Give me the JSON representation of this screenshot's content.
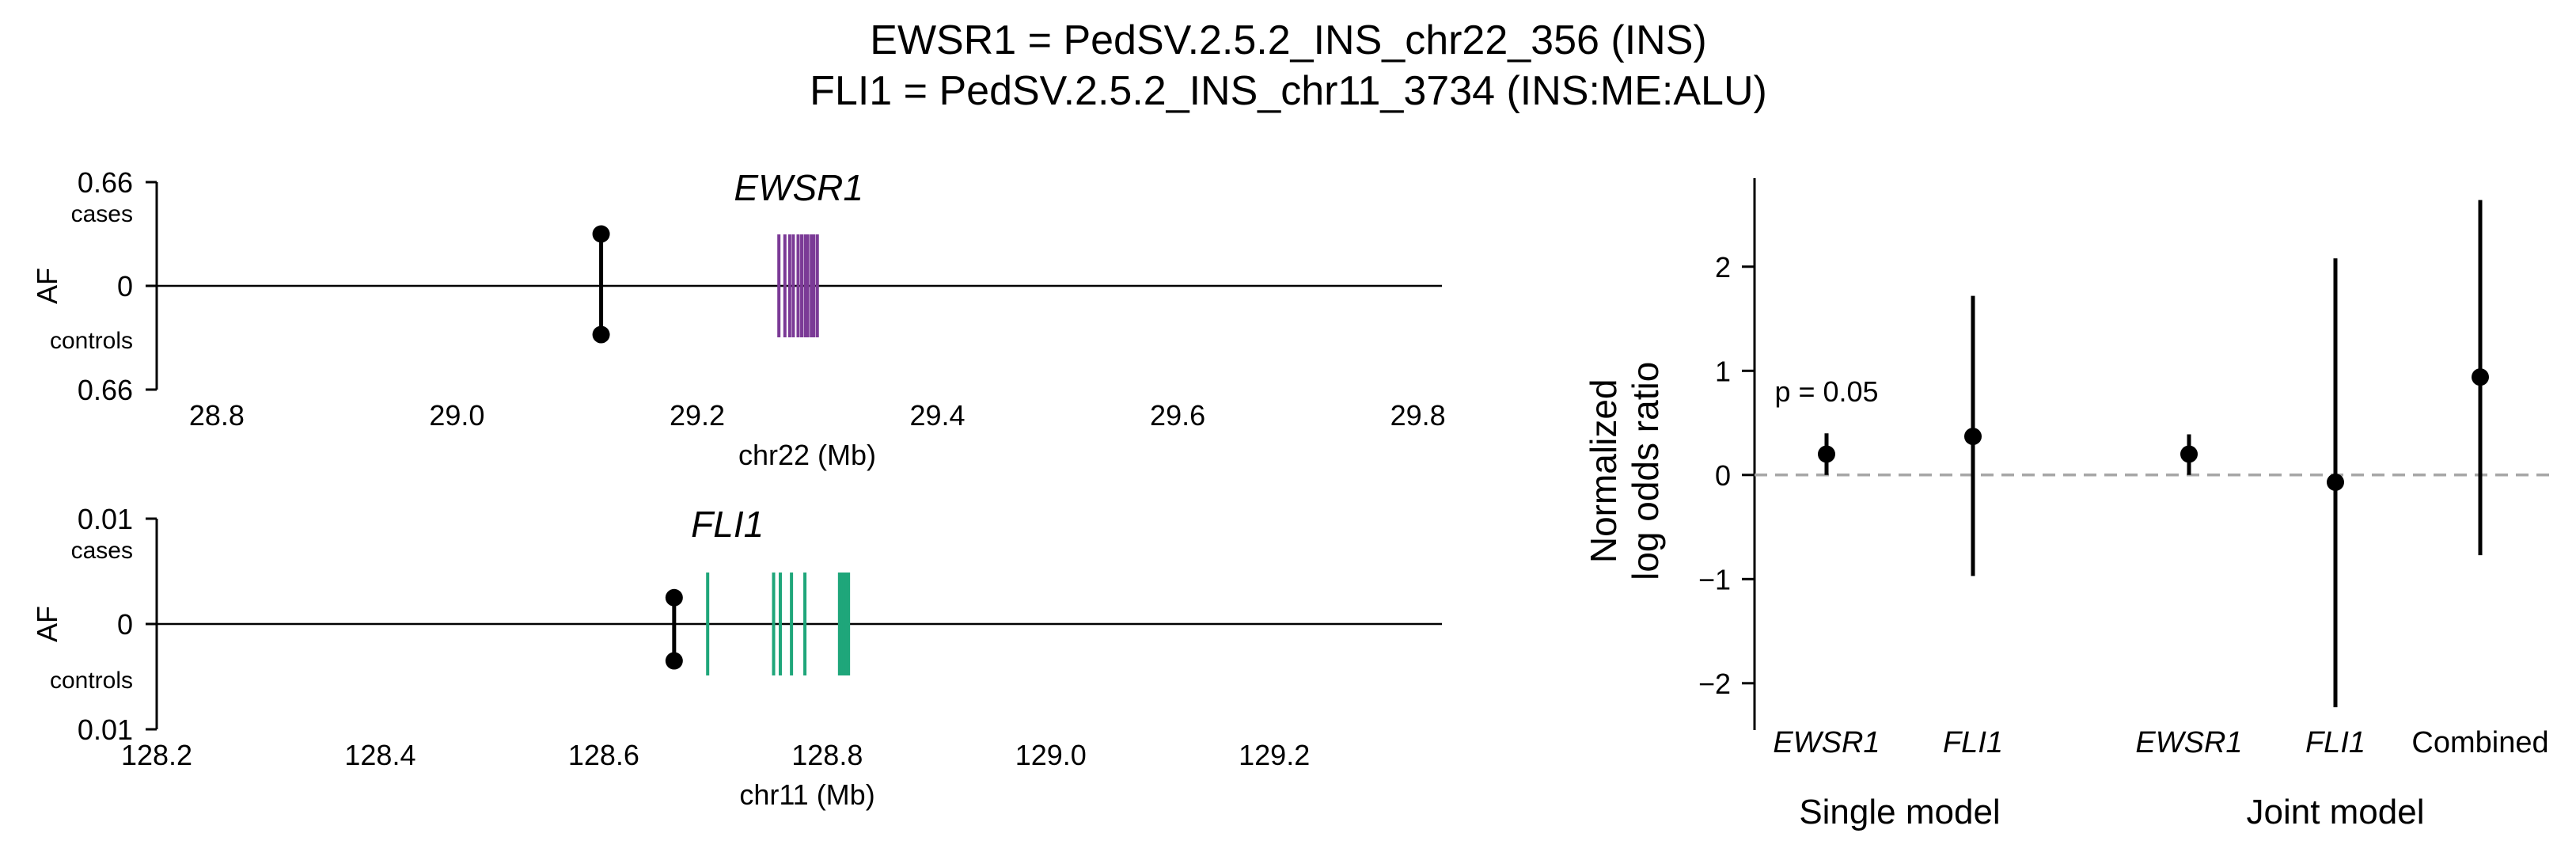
{
  "title_lines": [
    "EWSR1 = PedSV.2.5.2_INS_chr22_356 (INS)",
    "FLI1 = PedSV.2.5.2_INS_chr11_3734 (INS:ME:ALU)"
  ],
  "colors": {
    "ewsr1_exon": "#7B3A96",
    "fli1_exon": "#1FA67A",
    "marker": "#000000",
    "zero_line": "#A6A6A6"
  },
  "chart_data": [
    {
      "type": "lollipop",
      "gene": "EWSR1",
      "xlabel": "chr22 (Mb)",
      "ylabel": "AF",
      "xlim": [
        28.75,
        29.82
      ],
      "x_ticks": [
        "28.8",
        "29.0",
        "29.2",
        "29.4",
        "29.6",
        "29.8"
      ],
      "x_tick_values": [
        28.8,
        29.0,
        29.2,
        29.4,
        29.6,
        29.8
      ],
      "y_tick_top": "0.66",
      "y_tick_zero": "0",
      "y_tick_bottom": "0.66",
      "y_max": 0.66,
      "cases_label": "cases",
      "controls_label": "controls",
      "variant": {
        "position": 29.12,
        "af_cases": 0.33,
        "af_controls": 0.31
      },
      "exons": [
        29.268,
        29.273,
        29.277,
        29.28,
        29.284,
        29.287,
        29.29,
        29.292,
        29.295,
        29.297,
        29.3
      ]
    },
    {
      "type": "lollipop",
      "gene": "FLI1",
      "xlabel": "chr11 (Mb)",
      "ylabel": "AF",
      "xlim": [
        128.2,
        129.35
      ],
      "x_ticks": [
        "128.2",
        "128.4",
        "128.6",
        "128.8",
        "129.0",
        "129.2"
      ],
      "x_tick_values": [
        128.2,
        128.4,
        128.6,
        128.8,
        129.0,
        129.2
      ],
      "y_tick_top": "0.01",
      "y_tick_zero": "0",
      "y_tick_bottom": "0.01",
      "y_max": 0.01,
      "cases_label": "cases",
      "controls_label": "controls",
      "variant": {
        "position": 128.663,
        "af_cases": 0.0025,
        "af_controls": 0.0035
      },
      "exons": [
        128.693,
        128.752,
        128.758,
        128.768,
        128.78,
        128.811,
        128.813,
        128.815,
        128.817,
        128.819
      ]
    },
    {
      "type": "forest",
      "ylabel_lines": [
        "Normalized",
        "log odds ratio"
      ],
      "ylim": [
        -2.45,
        2.85
      ],
      "y_ticks": [
        -2,
        -1,
        0,
        1,
        2
      ],
      "y_tick_labels": [
        "−2",
        "−1",
        "0",
        "1",
        "2"
      ],
      "reference_line": 0,
      "points": [
        {
          "label": "EWSR1",
          "italic": true,
          "estimate": 0.2,
          "lower": 0.0,
          "upper": 0.4,
          "annotation": "p = 0.05"
        },
        {
          "label": "FLI1",
          "italic": true,
          "estimate": 0.37,
          "lower": -0.97,
          "upper": 1.72,
          "annotation": ""
        },
        {
          "label": "EWSR1",
          "italic": true,
          "estimate": 0.2,
          "lower": 0.0,
          "upper": 0.39,
          "annotation": ""
        },
        {
          "label": "FLI1",
          "italic": true,
          "estimate": -0.07,
          "lower": -2.23,
          "upper": 2.08,
          "annotation": ""
        },
        {
          "label": "Combined",
          "italic": false,
          "estimate": 0.94,
          "lower": -0.77,
          "upper": 2.64,
          "annotation": ""
        }
      ],
      "groups": [
        "Single model",
        "Joint model"
      ]
    }
  ]
}
